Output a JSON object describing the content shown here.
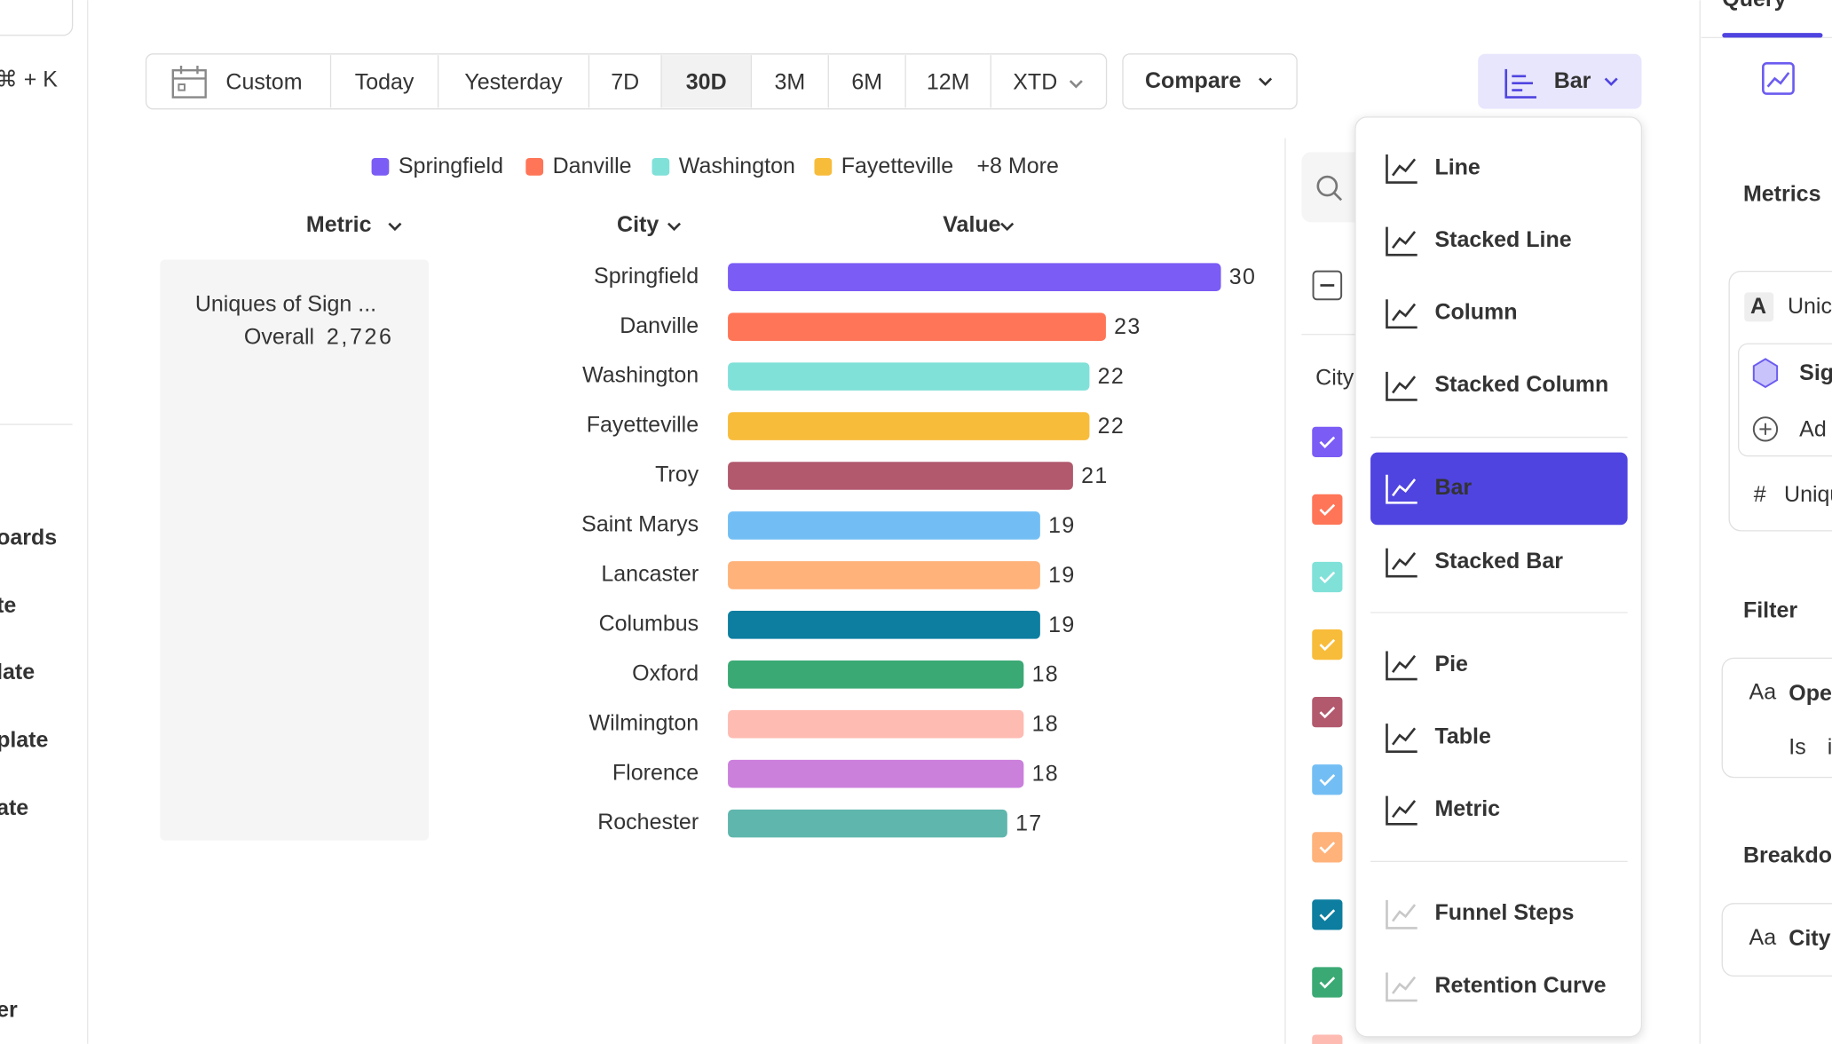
{
  "sidebar": {
    "shortcut": "⌘ + K",
    "items": [
      "oards",
      "te",
      "late",
      "plate",
      "ate",
      "er"
    ]
  },
  "date_range": {
    "options": [
      "Custom",
      "Today",
      "Yesterday",
      "7D",
      "30D",
      "3M",
      "6M",
      "12M",
      "XTD"
    ],
    "selected": 4
  },
  "compare": "Compare",
  "chart_type_button": "Bar",
  "chart_data": {
    "type": "bar",
    "orientation": "horizontal",
    "legend": [
      "Springfield",
      "Danville",
      "Washington",
      "Fayetteville"
    ],
    "legend_more": "+8 More",
    "headers": [
      "Metric",
      "City",
      "Value"
    ],
    "metric_label": "Uniques of Sign ...",
    "overall_label": "Overall",
    "overall_value": "2,726",
    "categories": [
      "Springfield",
      "Danville",
      "Washington",
      "Fayetteville",
      "Troy",
      "Saint Marys",
      "Lancaster",
      "Columbus",
      "Oxford",
      "Wilmington",
      "Florence",
      "Rochester"
    ],
    "values": [
      30,
      23,
      22,
      22,
      21,
      19,
      19,
      19,
      18,
      18,
      18,
      17
    ],
    "colors": [
      "#7b5cf5",
      "#ff7557",
      "#80e1d9",
      "#f8bc3b",
      "#b2596e",
      "#72bef4",
      "#ffb27a",
      "#0d7ea0",
      "#3ba974",
      "#febbb2",
      "#cb80dc",
      "#5fb6ad"
    ]
  },
  "filter_panel": {
    "column": "City"
  },
  "menu": {
    "items": [
      {
        "label": "Line",
        "state": "normal"
      },
      {
        "label": "Stacked Line",
        "state": "normal"
      },
      {
        "label": "Column",
        "state": "normal"
      },
      {
        "label": "Stacked Column",
        "state": "normal"
      },
      {
        "label": "Bar",
        "state": "selected"
      },
      {
        "label": "Stacked Bar",
        "state": "normal"
      },
      {
        "label": "Pie",
        "state": "normal"
      },
      {
        "label": "Table",
        "state": "normal"
      },
      {
        "label": "Metric",
        "state": "normal"
      },
      {
        "label": "Funnel Steps",
        "state": "disabled"
      },
      {
        "label": "Retention Curve",
        "state": "disabled"
      }
    ]
  },
  "right_panel": {
    "tab": "Query",
    "metrics": "Metrics",
    "letter": "A",
    "metric_name": "Unic",
    "event": "Sig",
    "add": "Ad",
    "hash": "#",
    "formula": "Uniqu",
    "filter": "Filter",
    "aa": "Aa",
    "filter_prop": "Ope",
    "filter_op": "Is",
    "filter_val": "i",
    "breakdown": "Breakdo",
    "breakdown_aa": "Aa",
    "breakdown_prop": "City"
  }
}
